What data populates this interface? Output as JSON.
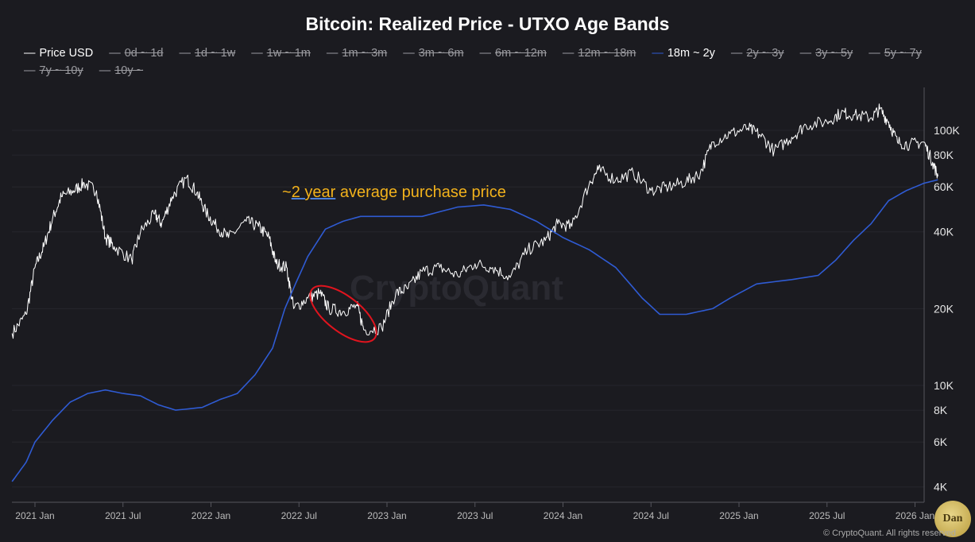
{
  "chart_data": {
    "type": "line",
    "title": "Bitcoin: Realized Price - UTXO Age Bands",
    "yscale": "log",
    "ylim": [
      3500,
      150000
    ],
    "xlim": [
      2020.85,
      2026.14
    ],
    "y_ticks": [
      {
        "v": 100000,
        "label": "100K"
      },
      {
        "v": 80000,
        "label": "80K"
      },
      {
        "v": 60000,
        "label": "60K"
      },
      {
        "v": 40000,
        "label": "40K"
      },
      {
        "v": 20000,
        "label": "20K"
      },
      {
        "v": 10000,
        "label": "10K"
      },
      {
        "v": 8000,
        "label": "8K"
      },
      {
        "v": 6000,
        "label": "6K"
      },
      {
        "v": 4000,
        "label": "4K"
      }
    ],
    "x_ticks": [
      {
        "v": 2021.0,
        "label": "2021 Jan"
      },
      {
        "v": 2021.5,
        "label": "2021 Jul"
      },
      {
        "v": 2022.0,
        "label": "2022 Jan"
      },
      {
        "v": 2022.5,
        "label": "2022 Jul"
      },
      {
        "v": 2023.0,
        "label": "2023 Jan"
      },
      {
        "v": 2023.5,
        "label": "2023 Jul"
      },
      {
        "v": 2024.0,
        "label": "2024 Jan"
      },
      {
        "v": 2024.5,
        "label": "2024 Jul"
      },
      {
        "v": 2025.0,
        "label": "2025 Jan"
      },
      {
        "v": 2025.5,
        "label": "2025 Jul"
      },
      {
        "v": 2026.0,
        "label": "2026 Jan"
      }
    ],
    "legend": [
      {
        "label": "Price USD",
        "active": true,
        "color": "#ffffff"
      },
      {
        "label": "0d ~ 1d",
        "active": false
      },
      {
        "label": "1d ~ 1w",
        "active": false
      },
      {
        "label": "1w ~ 1m",
        "active": false
      },
      {
        "label": "1m ~ 3m",
        "active": false
      },
      {
        "label": "3m ~ 6m",
        "active": false
      },
      {
        "label": "6m ~ 12m",
        "active": false
      },
      {
        "label": "12m ~ 18m",
        "active": false
      },
      {
        "label": "18m ~ 2y",
        "active": true,
        "color": "#2f5bd3"
      },
      {
        "label": "2y ~ 3y",
        "active": false
      },
      {
        "label": "3y ~ 5y",
        "active": false
      },
      {
        "label": "5y ~ 7y",
        "active": false
      },
      {
        "label": "7y ~ 10y",
        "active": false
      },
      {
        "label": "10y ~",
        "active": false
      }
    ],
    "series": [
      {
        "name": "Price USD",
        "color": "#ffffff",
        "points": [
          [
            2020.87,
            16000
          ],
          [
            2020.95,
            19000
          ],
          [
            2021.0,
            29000
          ],
          [
            2021.05,
            35000
          ],
          [
            2021.1,
            45000
          ],
          [
            2021.15,
            55000
          ],
          [
            2021.22,
            58000
          ],
          [
            2021.28,
            62000
          ],
          [
            2021.35,
            58000
          ],
          [
            2021.4,
            38000
          ],
          [
            2021.45,
            35000
          ],
          [
            2021.55,
            31000
          ],
          [
            2021.6,
            40000
          ],
          [
            2021.68,
            47000
          ],
          [
            2021.72,
            43000
          ],
          [
            2021.78,
            55000
          ],
          [
            2021.86,
            65000
          ],
          [
            2021.92,
            57000
          ],
          [
            2021.97,
            48000
          ],
          [
            2022.03,
            42000
          ],
          [
            2022.1,
            38000
          ],
          [
            2022.2,
            44000
          ],
          [
            2022.27,
            42000
          ],
          [
            2022.33,
            38000
          ],
          [
            2022.37,
            30000
          ],
          [
            2022.43,
            29000
          ],
          [
            2022.47,
            20000
          ],
          [
            2022.55,
            22000
          ],
          [
            2022.62,
            23000
          ],
          [
            2022.67,
            20000
          ],
          [
            2022.75,
            19500
          ],
          [
            2022.83,
            20500
          ],
          [
            2022.87,
            16500
          ],
          [
            2022.97,
            16800
          ],
          [
            2023.05,
            23000
          ],
          [
            2023.12,
            24000
          ],
          [
            2023.2,
            28000
          ],
          [
            2023.3,
            29000
          ],
          [
            2023.4,
            27000
          ],
          [
            2023.5,
            30000
          ],
          [
            2023.6,
            29000
          ],
          [
            2023.7,
            26500
          ],
          [
            2023.8,
            34000
          ],
          [
            2023.9,
            37000
          ],
          [
            2023.97,
            43000
          ],
          [
            2024.05,
            42000
          ],
          [
            2024.15,
            62000
          ],
          [
            2024.2,
            70000
          ],
          [
            2024.3,
            64000
          ],
          [
            2024.4,
            68000
          ],
          [
            2024.5,
            58000
          ],
          [
            2024.6,
            60000
          ],
          [
            2024.7,
            63000
          ],
          [
            2024.78,
            68000
          ],
          [
            2024.85,
            90000
          ],
          [
            2024.95,
            97000
          ],
          [
            2025.05,
            102000
          ],
          [
            2025.12,
            96000
          ],
          [
            2025.2,
            83000
          ],
          [
            2025.3,
            94000
          ],
          [
            2025.38,
            105000
          ],
          [
            2025.5,
            108000
          ],
          [
            2025.58,
            117000
          ],
          [
            2025.65,
            115000
          ],
          [
            2025.75,
            112000
          ],
          [
            2025.8,
            121000
          ],
          [
            2025.85,
            108000
          ],
          [
            2025.9,
            90000
          ],
          [
            2025.97,
            88000
          ],
          [
            2026.05,
            90000
          ],
          [
            2026.1,
            75000
          ],
          [
            2026.13,
            66000
          ]
        ]
      },
      {
        "name": "18m ~ 2y",
        "color": "#2f5bd3",
        "points": [
          [
            2020.87,
            4200
          ],
          [
            2020.95,
            5000
          ],
          [
            2021.0,
            6000
          ],
          [
            2021.1,
            7300
          ],
          [
            2021.2,
            8600
          ],
          [
            2021.3,
            9300
          ],
          [
            2021.4,
            9600
          ],
          [
            2021.5,
            9300
          ],
          [
            2021.6,
            9100
          ],
          [
            2021.7,
            8400
          ],
          [
            2021.8,
            8000
          ],
          [
            2021.95,
            8200
          ],
          [
            2022.05,
            8800
          ],
          [
            2022.15,
            9300
          ],
          [
            2022.25,
            11000
          ],
          [
            2022.35,
            14000
          ],
          [
            2022.42,
            20000
          ],
          [
            2022.48,
            25000
          ],
          [
            2022.55,
            32000
          ],
          [
            2022.65,
            41000
          ],
          [
            2022.75,
            44000
          ],
          [
            2022.85,
            46000
          ],
          [
            2023.0,
            46000
          ],
          [
            2023.2,
            46000
          ],
          [
            2023.4,
            50000
          ],
          [
            2023.55,
            51000
          ],
          [
            2023.7,
            49000
          ],
          [
            2023.85,
            44000
          ],
          [
            2024.0,
            38000
          ],
          [
            2024.15,
            34000
          ],
          [
            2024.3,
            29000
          ],
          [
            2024.45,
            22000
          ],
          [
            2024.55,
            19000
          ],
          [
            2024.7,
            19000
          ],
          [
            2024.85,
            20000
          ],
          [
            2024.95,
            22000
          ],
          [
            2025.1,
            25000
          ],
          [
            2025.3,
            26000
          ],
          [
            2025.45,
            27000
          ],
          [
            2025.55,
            31000
          ],
          [
            2025.65,
            37000
          ],
          [
            2025.75,
            43000
          ],
          [
            2025.85,
            53000
          ],
          [
            2025.95,
            58000
          ],
          [
            2026.05,
            62000
          ],
          [
            2026.13,
            64000
          ]
        ]
      }
    ],
    "annotation": {
      "prefix": "~",
      "underlined": "2 year",
      "suffix": " average purchase price",
      "highlight": "red ellipse around 2022 H2 lows"
    }
  },
  "watermark": "CryptoQuant",
  "logo_text": "Dan",
  "copyright": "© CryptoQuant. All rights reserved"
}
